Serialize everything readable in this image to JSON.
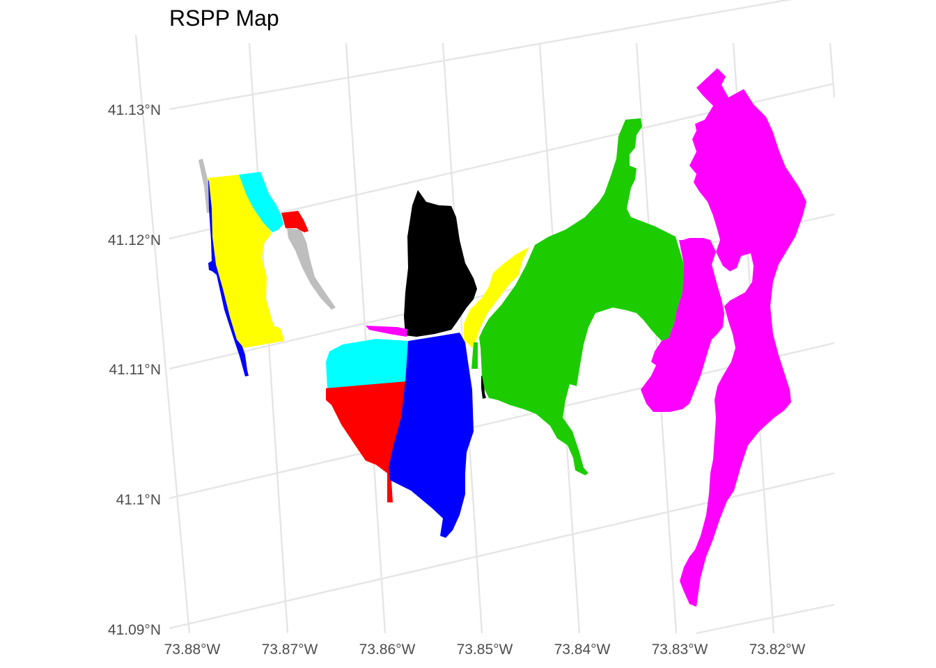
{
  "map": {
    "title": "RSPP Map",
    "lat_ticks": [
      "41.13°N",
      "41.12°N",
      "41.11°N",
      "41.1°N",
      "41.09°N"
    ],
    "lon_ticks": [
      "73.88°W",
      "73.87°W",
      "73.86°W",
      "73.85°W",
      "73.84°W",
      "73.83°W",
      "73.82°W"
    ],
    "parcel_colors": {
      "gray": "#bebebe",
      "yellow": "#ffff00",
      "cyan": "#00ffff",
      "red": "#ff0000",
      "blue": "#0000ff",
      "black": "#000000",
      "magenta": "#ff00ff",
      "green": "#00cd00"
    }
  }
}
